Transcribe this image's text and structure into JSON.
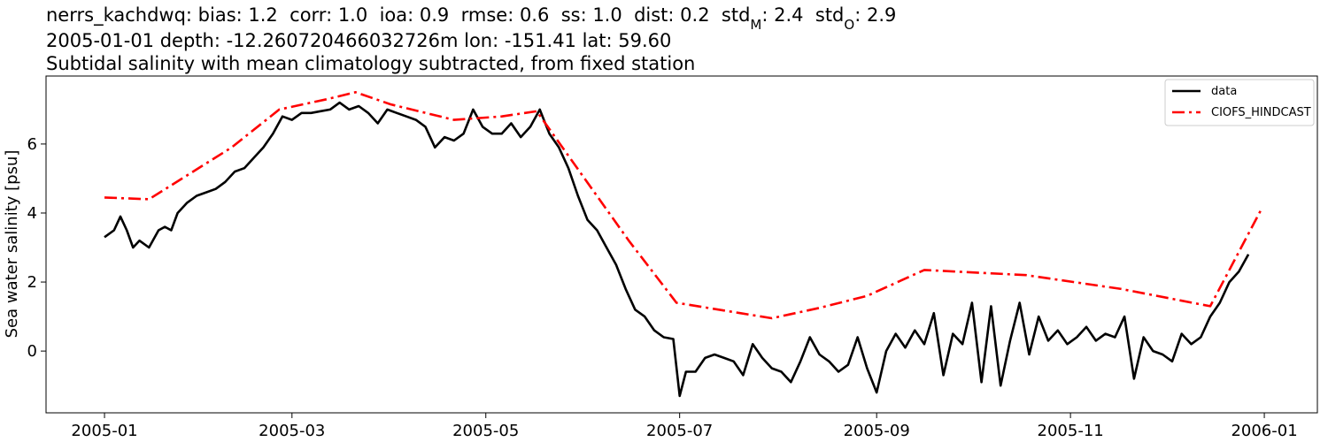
{
  "chart_data": {
    "type": "line",
    "title_segments": [
      "nerrs_kachdwq: bias: 1.2  corr: 1.0  ioa: 0.9  rmse: 0.6  ss: 1.0  dist: 0.2  std",
      "M",
      ": 2.4  std",
      "O",
      ": 2.9"
    ],
    "subtitle": "2005-01-01 depth: -12.260720466032726m lon: -151.41 lat: 59.60",
    "title": "Subtidal salinity with mean climatology subtracted, from fixed station",
    "y_label": "Sea water salinity [psu]",
    "xlim": [
      -18.4,
      381.7
    ],
    "xticks": [
      {
        "value": 0,
        "label": "2005-01"
      },
      {
        "value": 59,
        "label": "2005-03"
      },
      {
        "value": 120,
        "label": "2005-05"
      },
      {
        "value": 181,
        "label": "2005-07"
      },
      {
        "value": 243,
        "label": "2005-09"
      },
      {
        "value": 304,
        "label": "2005-11"
      },
      {
        "value": 365,
        "label": "2006-01"
      }
    ],
    "ylim": [
      -1.79,
      7.97
    ],
    "yticks": [
      0,
      2,
      4,
      6
    ],
    "legend": "upper right",
    "series": [
      {
        "name": "data",
        "color": "#000000",
        "dash": "solid",
        "x": [
          0,
          3,
          5,
          7,
          9,
          11,
          14,
          17,
          19,
          21,
          23,
          26,
          29,
          32,
          35,
          38,
          41,
          44,
          47,
          50,
          53,
          56,
          59,
          62,
          65,
          68,
          71,
          74,
          77,
          80,
          83,
          86,
          89,
          92,
          95,
          98,
          101,
          104,
          107,
          110,
          113,
          116,
          119,
          122,
          125,
          128,
          131,
          134,
          137,
          140,
          143,
          146,
          149,
          152,
          155,
          158,
          161,
          164,
          167,
          170,
          173,
          176,
          179,
          181,
          183,
          186,
          189,
          192,
          195,
          198,
          201,
          204,
          207,
          210,
          213,
          216,
          219,
          222,
          225,
          228,
          231,
          234,
          237,
          240,
          243,
          246,
          249,
          252,
          255,
          258,
          261,
          264,
          267,
          270,
          273,
          276,
          279,
          282,
          285,
          288,
          291,
          294,
          297,
          300,
          303,
          306,
          309,
          312,
          315,
          318,
          321,
          324,
          327,
          330,
          333,
          336,
          339,
          342,
          345,
          348,
          351,
          354,
          357,
          360
        ],
        "values": [
          3.3,
          3.5,
          3.9,
          3.5,
          3.0,
          3.2,
          3.0,
          3.5,
          3.6,
          3.5,
          4.0,
          4.3,
          4.5,
          4.6,
          4.7,
          4.9,
          5.2,
          5.3,
          5.6,
          5.9,
          6.3,
          6.8,
          6.7,
          6.9,
          6.9,
          6.95,
          7.0,
          7.2,
          7.0,
          7.1,
          6.9,
          6.6,
          7.0,
          6.9,
          6.8,
          6.7,
          6.5,
          5.9,
          6.2,
          6.1,
          6.3,
          7.0,
          6.5,
          6.3,
          6.3,
          6.6,
          6.2,
          6.5,
          7.0,
          6.3,
          5.9,
          5.3,
          4.5,
          3.8,
          3.5,
          3.0,
          2.5,
          1.8,
          1.2,
          1.0,
          0.6,
          0.4,
          0.35,
          -1.3,
          -0.6,
          -0.6,
          -0.2,
          -0.1,
          -0.2,
          -0.3,
          -0.7,
          0.2,
          -0.2,
          -0.5,
          -0.6,
          -0.9,
          -0.3,
          0.4,
          -0.1,
          -0.3,
          -0.6,
          -0.4,
          0.4,
          -0.5,
          -1.2,
          0.0,
          0.5,
          0.1,
          0.6,
          0.2,
          1.1,
          -0.7,
          0.5,
          0.2,
          1.4,
          -0.9,
          1.3,
          -1.0,
          0.3,
          1.4,
          -0.1,
          1.0,
          0.3,
          0.6,
          0.2,
          0.4,
          0.7,
          0.3,
          0.5,
          0.4,
          1.0,
          -0.8,
          0.4,
          0.0,
          -0.1,
          -0.3,
          0.5,
          0.2,
          0.4,
          1.0,
          1.4,
          2.0,
          2.3,
          2.8
        ]
      },
      {
        "name": "CIOFS_HINDCAST",
        "color": "#ff0000",
        "dash": "dashdot",
        "x": [
          0,
          14,
          40,
          55,
          70,
          79,
          90,
          110,
          125,
          136,
          165,
          180,
          200,
          210,
          225,
          240,
          258,
          290,
          320,
          348,
          364
        ],
        "values": [
          4.45,
          4.4,
          5.9,
          7.0,
          7.3,
          7.5,
          7.15,
          6.7,
          6.8,
          6.95,
          3.2,
          1.4,
          1.1,
          0.95,
          1.25,
          1.6,
          2.35,
          2.2,
          1.8,
          1.3,
          4.1
        ]
      }
    ]
  }
}
